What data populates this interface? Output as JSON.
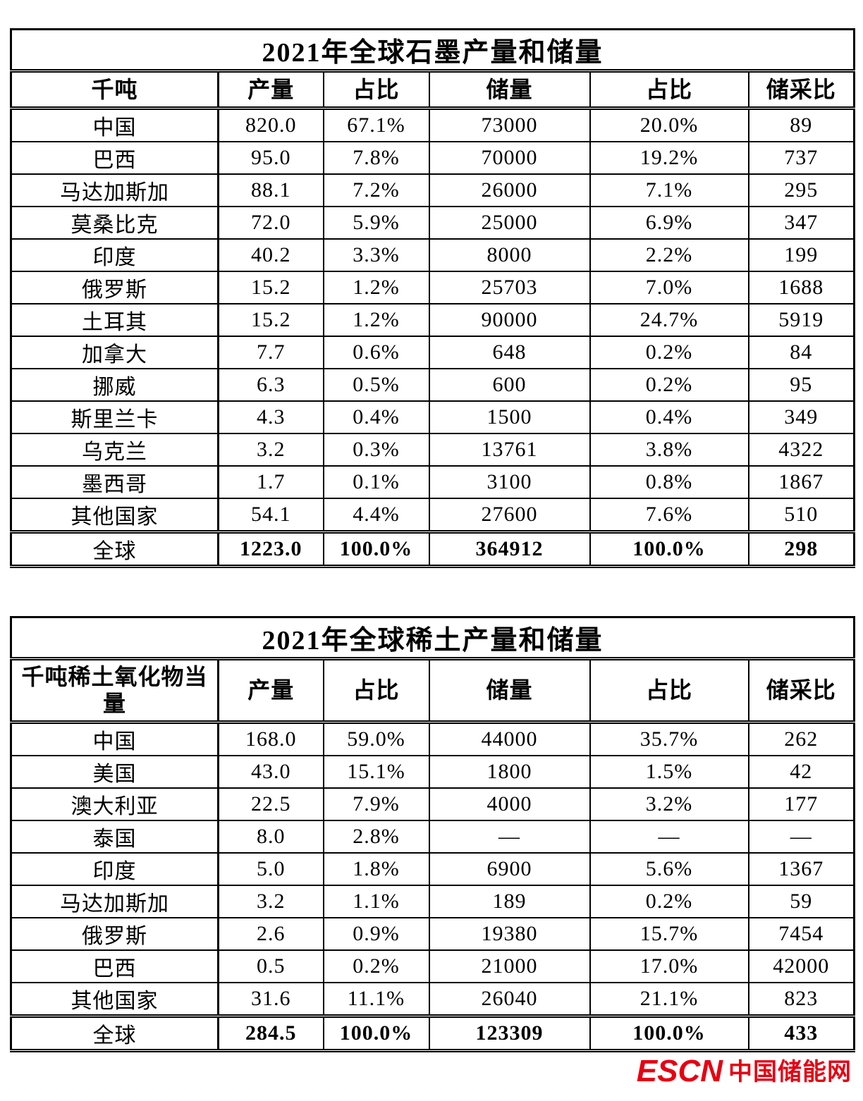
{
  "page": {
    "background": "#ffffff",
    "text_color": "#000000"
  },
  "graphite_table": {
    "title": "2021年全球石墨产量和储量",
    "headers": [
      "千吨",
      "产量",
      "占比",
      "储量",
      "占比",
      "储采比"
    ],
    "rows": [
      [
        "中国",
        "820.0",
        "67.1%",
        "73000",
        "20.0%",
        "89"
      ],
      [
        "巴西",
        "95.0",
        "7.8%",
        "70000",
        "19.2%",
        "737"
      ],
      [
        "马达加斯加",
        "88.1",
        "7.2%",
        "26000",
        "7.1%",
        "295"
      ],
      [
        "莫桑比克",
        "72.0",
        "5.9%",
        "25000",
        "6.9%",
        "347"
      ],
      [
        "印度",
        "40.2",
        "3.3%",
        "8000",
        "2.2%",
        "199"
      ],
      [
        "俄罗斯",
        "15.2",
        "1.2%",
        "25703",
        "7.0%",
        "1688"
      ],
      [
        "土耳其",
        "15.2",
        "1.2%",
        "90000",
        "24.7%",
        "5919"
      ],
      [
        "加拿大",
        "7.7",
        "0.6%",
        "648",
        "0.2%",
        "84"
      ],
      [
        "挪威",
        "6.3",
        "0.5%",
        "600",
        "0.2%",
        "95"
      ],
      [
        "斯里兰卡",
        "4.3",
        "0.4%",
        "1500",
        "0.4%",
        "349"
      ],
      [
        "乌克兰",
        "3.2",
        "0.3%",
        "13761",
        "3.8%",
        "4322"
      ],
      [
        "墨西哥",
        "1.7",
        "0.1%",
        "3100",
        "0.8%",
        "1867"
      ],
      [
        "其他国家",
        "54.1",
        "4.4%",
        "27600",
        "7.6%",
        "510"
      ]
    ],
    "totals": [
      [
        "全球",
        "1223.0",
        "100.0%",
        "364912",
        "100.0%",
        "298"
      ]
    ]
  },
  "rare_earth_table": {
    "title": "2021年全球稀土产量和储量",
    "headers": [
      "千吨稀土氧化物当量",
      "产量",
      "占比",
      "储量",
      "占比",
      "储采比"
    ],
    "rows": [
      [
        "中国",
        "168.0",
        "59.0%",
        "44000",
        "35.7%",
        "262"
      ],
      [
        "美国",
        "43.0",
        "15.1%",
        "1800",
        "1.5%",
        "42"
      ],
      [
        "澳大利亚",
        "22.5",
        "7.9%",
        "4000",
        "3.2%",
        "177"
      ],
      [
        "泰国",
        "8.0",
        "2.8%",
        "—",
        "—",
        "—"
      ],
      [
        "印度",
        "5.0",
        "1.8%",
        "6900",
        "5.6%",
        "1367"
      ],
      [
        "马达加斯加",
        "3.2",
        "1.1%",
        "189",
        "0.2%",
        "59"
      ],
      [
        "俄罗斯",
        "2.6",
        "0.9%",
        "19380",
        "15.7%",
        "7454"
      ],
      [
        "巴西",
        "0.5",
        "0.2%",
        "21000",
        "17.0%",
        "42000"
      ],
      [
        "其他国家",
        "31.6",
        "11.1%",
        "26040",
        "21.1%",
        "823"
      ]
    ],
    "totals": [
      [
        "全球",
        "284.5",
        "100.0%",
        "123309",
        "100.0%",
        "433"
      ]
    ]
  },
  "footer": {
    "logo_en": "ESCN",
    "logo_cn": "中国储能网",
    "logo_color": "#e60012"
  }
}
